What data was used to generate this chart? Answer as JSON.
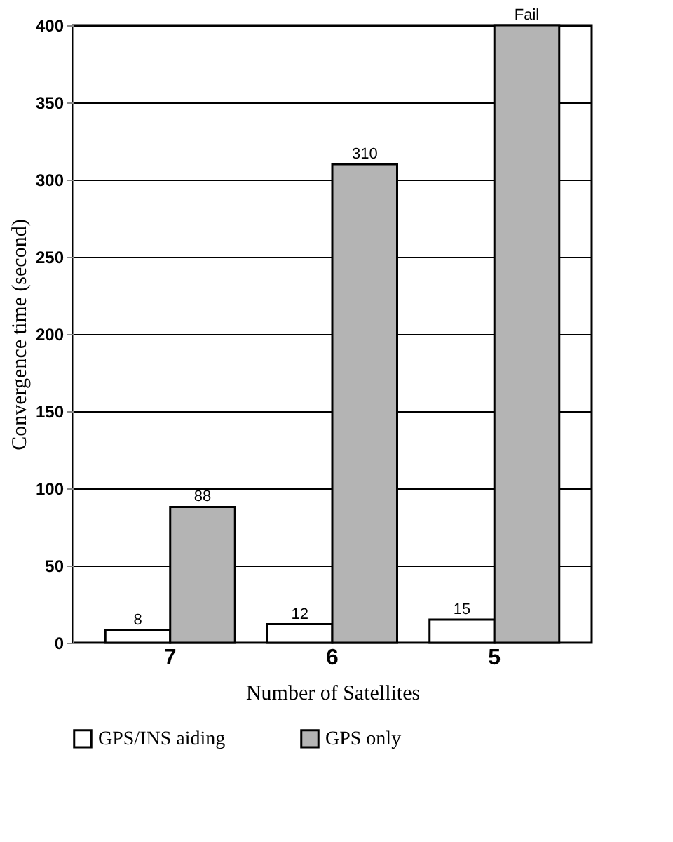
{
  "chart_data": {
    "type": "bar",
    "xlabel": "Number of Satellites",
    "ylabel": "Convergence time (second)",
    "categories": [
      "7",
      "6",
      "5"
    ],
    "series": [
      {
        "name": "GPS/INS aiding",
        "color": "#ffffff",
        "values": [
          8,
          12,
          15
        ],
        "value_labels": [
          "8",
          "12",
          "15"
        ]
      },
      {
        "name": "GPS only",
        "color": "#b4b4b4",
        "values": [
          88,
          310,
          400
        ],
        "value_labels": [
          "88",
          "310",
          "Fail"
        ]
      }
    ],
    "ylim": [
      0,
      400
    ],
    "yticks": [
      0,
      50,
      100,
      150,
      200,
      250,
      300,
      350,
      400
    ],
    "grid": "y",
    "legend": "bottom"
  }
}
